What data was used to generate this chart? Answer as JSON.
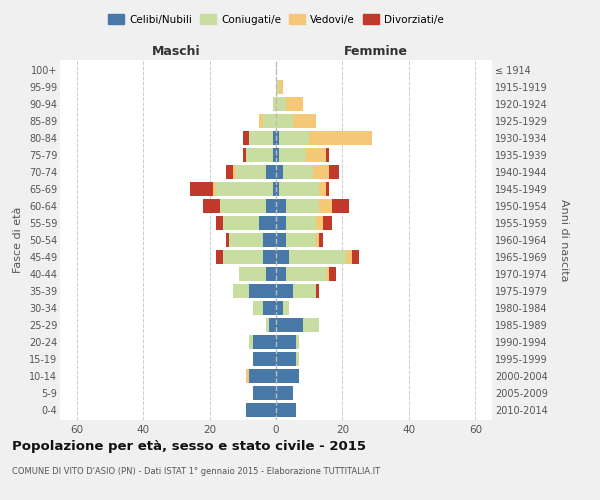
{
  "age_groups": [
    "0-4",
    "5-9",
    "10-14",
    "15-19",
    "20-24",
    "25-29",
    "30-34",
    "35-39",
    "40-44",
    "45-49",
    "50-54",
    "55-59",
    "60-64",
    "65-69",
    "70-74",
    "75-79",
    "80-84",
    "85-89",
    "90-94",
    "95-99",
    "100+"
  ],
  "birth_years": [
    "2010-2014",
    "2005-2009",
    "2000-2004",
    "1995-1999",
    "1990-1994",
    "1985-1989",
    "1980-1984",
    "1975-1979",
    "1970-1974",
    "1965-1969",
    "1960-1964",
    "1955-1959",
    "1950-1954",
    "1945-1949",
    "1940-1944",
    "1935-1939",
    "1930-1934",
    "1925-1929",
    "1920-1924",
    "1915-1919",
    "≤ 1914"
  ],
  "colors": {
    "celibi": "#4878a8",
    "coniugati": "#c8dda0",
    "vedovi": "#f5c878",
    "divorziati": "#c0392b"
  },
  "males": {
    "celibi": [
      9,
      7,
      8,
      7,
      7,
      2,
      4,
      8,
      3,
      4,
      4,
      5,
      3,
      1,
      3,
      1,
      1,
      0,
      0,
      0,
      0
    ],
    "coniugati": [
      0,
      0,
      0,
      0,
      1,
      1,
      3,
      5,
      8,
      12,
      10,
      11,
      14,
      17,
      9,
      8,
      7,
      4,
      1,
      0,
      0
    ],
    "vedovi": [
      0,
      0,
      1,
      0,
      0,
      0,
      0,
      0,
      0,
      0,
      0,
      0,
      0,
      1,
      1,
      0,
      0,
      1,
      0,
      0,
      0
    ],
    "divorziati": [
      0,
      0,
      0,
      0,
      0,
      0,
      0,
      0,
      0,
      2,
      1,
      2,
      5,
      7,
      2,
      1,
      2,
      0,
      0,
      0,
      0
    ]
  },
  "females": {
    "nubili": [
      6,
      5,
      7,
      6,
      6,
      8,
      2,
      5,
      3,
      4,
      3,
      3,
      3,
      1,
      2,
      1,
      1,
      0,
      0,
      0,
      0
    ],
    "coniugate": [
      0,
      0,
      0,
      1,
      1,
      5,
      2,
      7,
      12,
      17,
      9,
      9,
      10,
      12,
      9,
      8,
      9,
      5,
      3,
      1,
      0
    ],
    "vedove": [
      0,
      0,
      0,
      0,
      0,
      0,
      0,
      0,
      1,
      2,
      1,
      2,
      4,
      2,
      5,
      6,
      19,
      7,
      5,
      1,
      0
    ],
    "divorziate": [
      0,
      0,
      0,
      0,
      0,
      0,
      0,
      1,
      2,
      2,
      1,
      3,
      5,
      1,
      3,
      1,
      0,
      0,
      0,
      0,
      0
    ]
  },
  "xlim": 65,
  "title": "Popolazione per età, sesso e stato civile - 2015",
  "subtitle": "COMUNE DI VITO D'ASIO (PN) - Dati ISTAT 1° gennaio 2015 - Elaborazione TUTTITALIA.IT",
  "ylabel_left": "Fasce di età",
  "ylabel_right": "Anni di nascita",
  "xlabel_left": "Maschi",
  "xlabel_right": "Femmine",
  "legend_labels": [
    "Celibi/Nubili",
    "Coniugati/e",
    "Vedovi/e",
    "Divorziati/e"
  ],
  "bg_color": "#f0f0f0",
  "plot_bg_color": "#ffffff"
}
